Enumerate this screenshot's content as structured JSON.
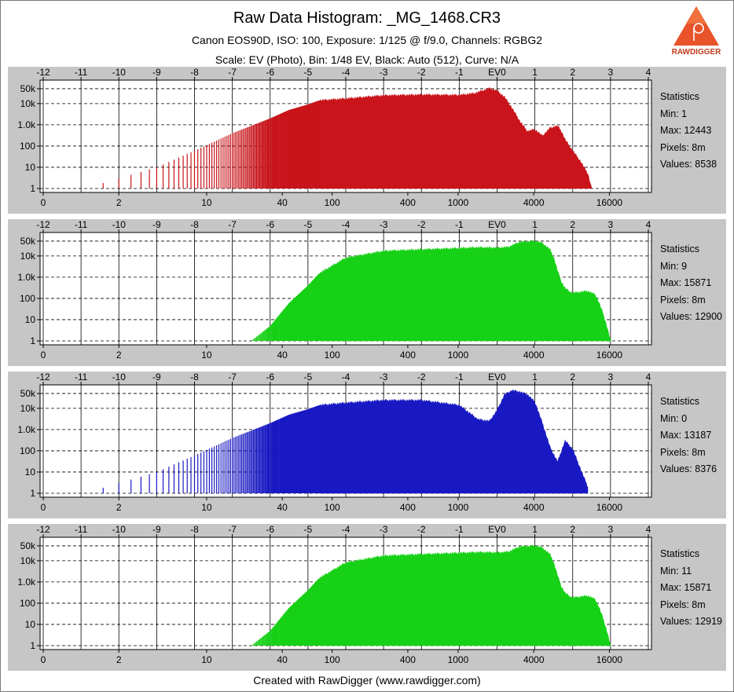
{
  "header": {
    "title": "Raw Data Histogram: _MG_1468.CR3",
    "subtitle_1": "Canon EOS90D, ISO: 100, Exposure: 1/125 @ f/9.0, Channels: RGBG2",
    "subtitle_2": "Scale: EV (Photo), Bin: 1/48 EV, Black: Auto (512), Curve: N/A"
  },
  "logo": {
    "text": "RAWDIGGER",
    "icon": "rawdigger-logo-icon"
  },
  "footer": {
    "text": "Created with RawDigger (www.rawdigger.com)"
  },
  "axes": {
    "top_ticks": [
      "-12",
      "-11",
      "-10",
      "-9",
      "-8",
      "-7",
      "-6",
      "-5",
      "-4",
      "-3",
      "-2",
      "-1",
      "EV0",
      "1",
      "2",
      "3",
      "4"
    ],
    "bottom_ticks": [
      "0",
      "2",
      "10",
      "40",
      "100",
      "400",
      "1000",
      "4000",
      "16000"
    ],
    "y_ticks": [
      "50k",
      "10k",
      "1.0k",
      "100",
      "10",
      "1"
    ]
  },
  "colors": {
    "red": "#c8141a",
    "green": "#16d116",
    "blue": "#1919c4",
    "panel": "#c6c6c6"
  },
  "chart_data": [
    {
      "type": "area",
      "series": "R",
      "scale": "log-log",
      "x_axis": "EV",
      "envelope_ev": [
        -10.9,
        -10,
        -9,
        -8,
        -7,
        -6,
        -5.5,
        -5,
        -4.7,
        -4,
        -3,
        -2,
        -1,
        -0.6,
        -0.2,
        0,
        0.2,
        0.4,
        0.6,
        0.8,
        1.0,
        1.2,
        1.4,
        1.6,
        1.7,
        1.8,
        2.0,
        2.2,
        2.4,
        2.5
      ],
      "envelope_count": [
        1,
        3,
        10,
        60,
        400,
        2000,
        5000,
        9000,
        14000,
        17000,
        24000,
        26000,
        25000,
        30000,
        52000,
        40000,
        20000,
        6000,
        1500,
        500,
        600,
        300,
        700,
        900,
        500,
        200,
        60,
        20,
        5,
        1
      ],
      "stats": {
        "heading": "Statistics",
        "min": "Min: 1",
        "max": "Max: 12443",
        "pixels": "Pixels: 8m",
        "values": "Values: 8538"
      }
    },
    {
      "type": "area",
      "series": "G",
      "scale": "log-log",
      "x_axis": "EV",
      "envelope_ev": [
        -6.5,
        -6,
        -5.5,
        -5,
        -4.7,
        -4,
        -3,
        -2,
        -1,
        -0.5,
        0,
        0.3,
        0.6,
        1.0,
        1.2,
        1.4,
        1.5,
        1.6,
        1.7,
        1.8,
        1.9,
        2.0,
        2.2,
        2.4,
        2.6,
        2.7,
        2.8,
        2.9,
        3.0
      ],
      "envelope_count": [
        1,
        5,
        60,
        400,
        1500,
        8000,
        17000,
        20000,
        23000,
        25000,
        24000,
        26000,
        45000,
        50000,
        40000,
        20000,
        8000,
        2000,
        600,
        300,
        220,
        180,
        200,
        220,
        150,
        60,
        20,
        5,
        1
      ],
      "stats": {
        "heading": "Statistics",
        "min": "Min: 9",
        "max": "Max: 15871",
        "pixels": "Pixels: 8m",
        "values": "Values: 12900"
      }
    },
    {
      "type": "area",
      "series": "B",
      "scale": "log-log",
      "x_axis": "EV",
      "envelope_ev": [
        -10.9,
        -10,
        -9,
        -8,
        -7,
        -6,
        -5.5,
        -5,
        -4.7,
        -4,
        -3,
        -2,
        -1,
        -0.5,
        -0.2,
        0,
        0.2,
        0.4,
        0.6,
        0.8,
        1.0,
        1.2,
        1.4,
        1.6,
        1.8,
        2.0,
        2.2,
        2.4
      ],
      "envelope_count": [
        1,
        3,
        10,
        60,
        400,
        2000,
        5000,
        9000,
        14000,
        18000,
        24000,
        24000,
        14000,
        3000,
        2500,
        8000,
        45000,
        70000,
        60000,
        45000,
        20000,
        2000,
        150,
        30,
        300,
        120,
        15,
        2
      ],
      "stats": {
        "heading": "Statistics",
        "min": "Min: 0",
        "max": "Max: 13187",
        "pixels": "Pixels: 8m",
        "values": "Values: 8376"
      }
    },
    {
      "type": "area",
      "series": "G2",
      "scale": "log-log",
      "x_axis": "EV",
      "envelope_ev": [
        -6.5,
        -6,
        -5.5,
        -5,
        -4.7,
        -4,
        -3,
        -2,
        -1,
        -0.5,
        0,
        0.3,
        0.6,
        1.0,
        1.2,
        1.4,
        1.5,
        1.6,
        1.7,
        1.8,
        1.9,
        2.0,
        2.2,
        2.4,
        2.6,
        2.7,
        2.8,
        2.9,
        3.0
      ],
      "envelope_count": [
        1,
        5,
        60,
        400,
        1500,
        8000,
        17000,
        20000,
        23000,
        25000,
        24000,
        26000,
        45000,
        50000,
        40000,
        20000,
        8000,
        2000,
        600,
        300,
        220,
        180,
        200,
        220,
        150,
        60,
        20,
        5,
        1
      ],
      "stats": {
        "heading": "Statistics",
        "min": "Min: 11",
        "max": "Max: 15871",
        "pixels": "Pixels: 8m",
        "values": "Values: 12919"
      }
    }
  ]
}
